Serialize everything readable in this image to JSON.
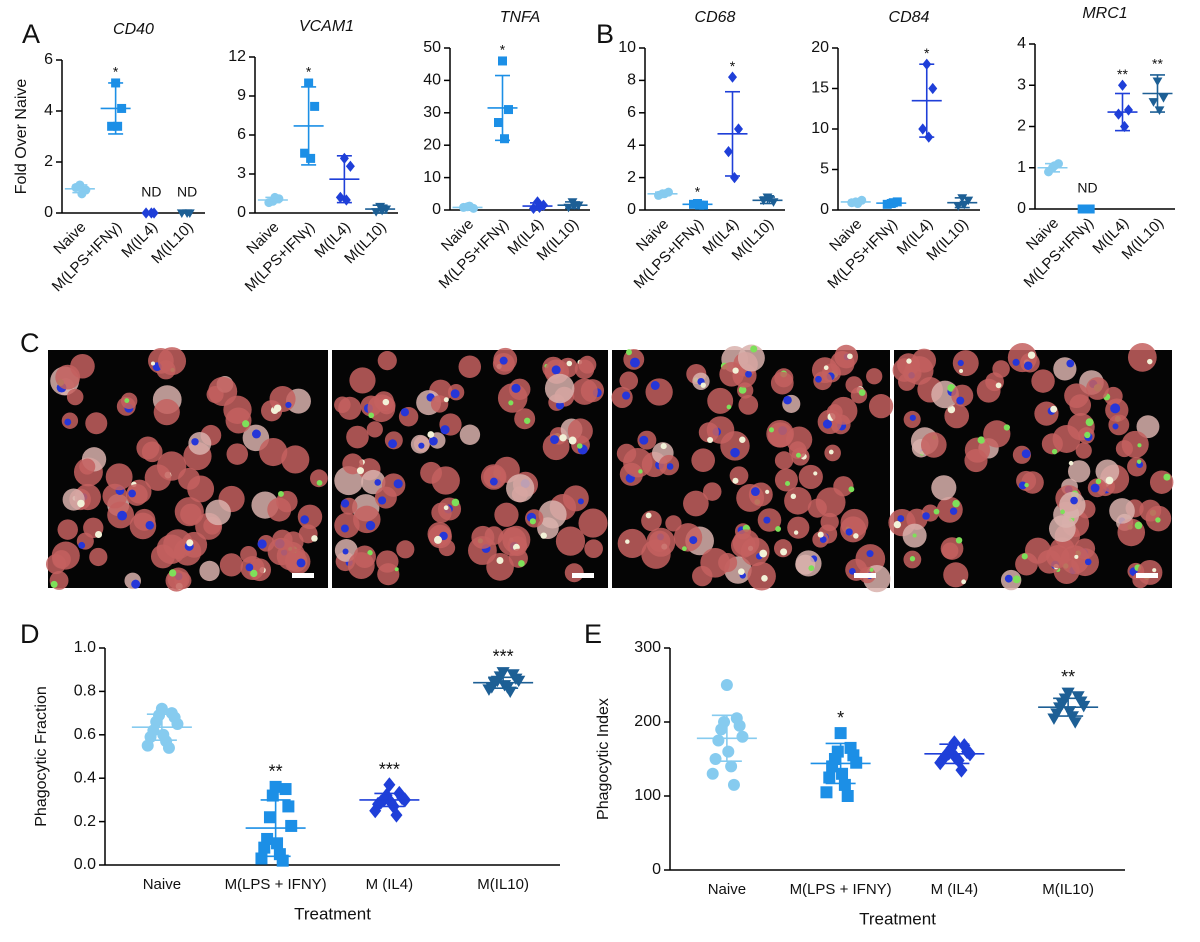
{
  "chart_data": [
    {
      "type": "dot",
      "panel": "A",
      "title": "CD40",
      "ylabel": "Fold Over Naive",
      "categories": [
        "Naive",
        "M(LPS+IFNγ)",
        "M(IL4)",
        "M(IL10)"
      ],
      "ylim": [
        0,
        6
      ],
      "yticks": [
        0,
        2,
        4,
        6
      ],
      "groups": [
        {
          "marker": "circle",
          "color": "#86cbef",
          "values": [
            1.1,
            0.9,
            1.0,
            0.75
          ],
          "mean": 0.95,
          "sd": 0.15
        },
        {
          "marker": "square",
          "color": "#1c8fe6",
          "values": [
            5.1,
            4.1,
            3.4,
            3.4
          ],
          "mean": 4.1,
          "sd": 1.0,
          "annotation": "*"
        },
        {
          "marker": "diamond",
          "color": "#1f3fd8",
          "values": [
            0,
            0,
            0
          ],
          "annotation": "ND"
        },
        {
          "marker": "triangle",
          "color": "#1d5f95",
          "values": [
            0,
            0,
            0
          ],
          "annotation": "ND"
        }
      ]
    },
    {
      "type": "dot",
      "title": "VCAM1",
      "categories": [
        "Naive",
        "M(LPS+IFNγ)",
        "M(IL4)",
        "M(IL10)"
      ],
      "ylim": [
        0,
        12
      ],
      "yticks": [
        0,
        3,
        6,
        9,
        12
      ],
      "groups": [
        {
          "marker": "circle",
          "color": "#86cbef",
          "values": [
            0.9,
            1.1,
            0.8,
            1.2
          ],
          "mean": 1.0,
          "sd": 0.2
        },
        {
          "marker": "square",
          "color": "#1c8fe6",
          "values": [
            10.0,
            8.2,
            4.6,
            4.2
          ],
          "mean": 6.7,
          "sd": 3.0,
          "annotation": "*"
        },
        {
          "marker": "diamond",
          "color": "#1f3fd8",
          "values": [
            4.2,
            3.6,
            1.2,
            1.0
          ],
          "mean": 2.6,
          "sd": 1.8
        },
        {
          "marker": "triangle",
          "color": "#1d5f95",
          "values": [
            0.5,
            0.3,
            0.1,
            0.2
          ],
          "mean": 0.3,
          "sd": 0.3
        }
      ]
    },
    {
      "type": "dot",
      "title": "TNFA",
      "categories": [
        "Naive",
        "M(LPS+IFNγ)",
        "M(IL4)",
        "M(IL10)"
      ],
      "ylim": [
        0,
        50
      ],
      "yticks": [
        0,
        10,
        20,
        30,
        40,
        50
      ],
      "groups": [
        {
          "marker": "circle",
          "color": "#86cbef",
          "values": [
            1.0,
            0.5,
            0.8,
            1.2
          ],
          "mean": 0.8,
          "sd": 0.4
        },
        {
          "marker": "square",
          "color": "#1c8fe6",
          "values": [
            46,
            31,
            27,
            22
          ],
          "mean": 31.5,
          "sd": 10,
          "annotation": "*"
        },
        {
          "marker": "diamond",
          "color": "#1f3fd8",
          "values": [
            2.5,
            1.5,
            0.5,
            0.8
          ],
          "mean": 1.2,
          "sd": 1.0
        },
        {
          "marker": "triangle",
          "color": "#1d5f95",
          "values": [
            2.5,
            1.5,
            0.8,
            1.5
          ],
          "mean": 1.5,
          "sd": 1.0
        }
      ]
    },
    {
      "type": "dot",
      "panel": "B",
      "title": "CD68",
      "categories": [
        "Naive",
        "M(LPS+IFNγ)",
        "M(IL4)",
        "M(IL10)"
      ],
      "ylim": [
        0,
        10
      ],
      "yticks": [
        0,
        2,
        4,
        6,
        8,
        10
      ],
      "groups": [
        {
          "marker": "circle",
          "color": "#86cbef",
          "values": [
            1.0,
            1.1,
            0.9,
            1.0
          ],
          "mean": 1.0,
          "sd": 0.1
        },
        {
          "marker": "square",
          "color": "#1c8fe6",
          "values": [
            0.4,
            0.3,
            0.35,
            0.3
          ],
          "mean": 0.35,
          "sd": 0.1,
          "annotation": "*"
        },
        {
          "marker": "diamond",
          "color": "#1f3fd8",
          "values": [
            8.2,
            5.0,
            3.6,
            2.0
          ],
          "mean": 4.7,
          "sd": 2.6,
          "annotation": "*"
        },
        {
          "marker": "triangle",
          "color": "#1d5f95",
          "values": [
            0.8,
            0.5,
            0.6,
            0.7
          ],
          "mean": 0.6,
          "sd": 0.2
        }
      ]
    },
    {
      "type": "dot",
      "title": "CD84",
      "categories": [
        "Naive",
        "M(LPS+IFNγ)",
        "M(IL4)",
        "M(IL10)"
      ],
      "ylim": [
        0,
        20
      ],
      "yticks": [
        0,
        5,
        10,
        15,
        20
      ],
      "groups": [
        {
          "marker": "circle",
          "color": "#86cbef",
          "values": [
            1.0,
            1.2,
            0.9,
            0.8
          ],
          "mean": 1.0,
          "sd": 0.2
        },
        {
          "marker": "square",
          "color": "#1c8fe6",
          "values": [
            0.8,
            1.0,
            0.7,
            0.9
          ],
          "mean": 0.85,
          "sd": 0.2
        },
        {
          "marker": "diamond",
          "color": "#1f3fd8",
          "values": [
            18,
            15,
            10,
            9
          ],
          "mean": 13.5,
          "sd": 4.5,
          "annotation": "*"
        },
        {
          "marker": "triangle",
          "color": "#1d5f95",
          "values": [
            1.5,
            1.2,
            0.5,
            0.7
          ],
          "mean": 0.9,
          "sd": 0.6
        }
      ]
    },
    {
      "type": "dot",
      "title": "MRC1",
      "categories": [
        "Naive",
        "M(LPS+IFNγ)",
        "M(IL4)",
        "M(IL10)"
      ],
      "ylim": [
        0,
        4
      ],
      "yticks": [
        0,
        1,
        2,
        3,
        4
      ],
      "groups": [
        {
          "marker": "circle",
          "color": "#86cbef",
          "values": [
            1.0,
            1.1,
            0.9,
            1.05
          ],
          "mean": 1.0,
          "sd": 0.1
        },
        {
          "marker": "square",
          "color": "#1c8fe6",
          "values": [
            0,
            0,
            0
          ],
          "annotation": "ND"
        },
        {
          "marker": "diamond",
          "color": "#1f3fd8",
          "values": [
            3.0,
            2.4,
            2.3,
            2.0
          ],
          "mean": 2.35,
          "sd": 0.45,
          "annotation": "**"
        },
        {
          "marker": "triangle",
          "color": "#1d5f95",
          "values": [
            3.1,
            2.7,
            2.6,
            2.4
          ],
          "mean": 2.8,
          "sd": 0.45,
          "annotation": "**"
        }
      ]
    },
    {
      "type": "dot",
      "panel": "D",
      "ylabel": "Phagocytic Fraction",
      "xlabel": "Treatment",
      "categories": [
        "Naive",
        "M(LPS + IFNY)",
        "M (IL4)",
        "M(IL10)"
      ],
      "ylim": [
        0,
        1
      ],
      "yticks": [
        {
          "value": 0,
          "label": "0.0"
        },
        0.2,
        0.4,
        0.6,
        0.8,
        {
          "value": 1,
          "label": "1.0"
        }
      ],
      "groups": [
        {
          "marker": "circle",
          "color": "#86cbef",
          "values": [
            0.72,
            0.7,
            0.69,
            0.68,
            0.66,
            0.65,
            0.62,
            0.6,
            0.59,
            0.57,
            0.55,
            0.54
          ],
          "mean": 0.635,
          "sd": 0.06
        },
        {
          "marker": "square",
          "color": "#1c8fe6",
          "values": [
            0.36,
            0.35,
            0.32,
            0.27,
            0.22,
            0.18,
            0.12,
            0.1,
            0.08,
            0.05,
            0.03,
            0.02
          ],
          "mean": 0.17,
          "sd": 0.13,
          "annotation": "**"
        },
        {
          "marker": "diamond",
          "color": "#1f3fd8",
          "values": [
            0.37,
            0.33,
            0.32,
            0.31,
            0.3,
            0.3,
            0.29,
            0.29,
            0.28,
            0.27,
            0.25,
            0.23
          ],
          "mean": 0.3,
          "sd": 0.03,
          "annotation": "***"
        },
        {
          "marker": "triangle",
          "color": "#1d5f95",
          "values": [
            0.89,
            0.88,
            0.87,
            0.86,
            0.85,
            0.85,
            0.84,
            0.83,
            0.82,
            0.82,
            0.81,
            0.8
          ],
          "mean": 0.84,
          "sd": 0.025,
          "annotation": "***"
        }
      ]
    },
    {
      "type": "dot",
      "panel": "E",
      "ylabel": "Phagocytic Index",
      "xlabel": "Treatment",
      "categories": [
        "Naive",
        "M(LPS + IFNY)",
        "M (IL4)",
        "M(IL10)"
      ],
      "ylim": [
        0,
        300
      ],
      "yticks": [
        0,
        100,
        200,
        300
      ],
      "groups": [
        {
          "marker": "circle",
          "color": "#86cbef",
          "values": [
            250,
            205,
            200,
            195,
            190,
            180,
            175,
            160,
            150,
            140,
            130,
            115
          ],
          "mean": 178,
          "sd": 31
        },
        {
          "marker": "square",
          "color": "#1c8fe6",
          "values": [
            185,
            165,
            160,
            155,
            150,
            145,
            140,
            130,
            125,
            115,
            105,
            100
          ],
          "mean": 144,
          "sd": 27,
          "annotation": "*"
        },
        {
          "marker": "diamond",
          "color": "#1f3fd8",
          "values": [
            172,
            168,
            165,
            160,
            158,
            157,
            155,
            152,
            150,
            148,
            145,
            135
          ],
          "mean": 157,
          "sd": 13
        },
        {
          "marker": "triangle",
          "color": "#1d5f95",
          "values": [
            240,
            235,
            232,
            228,
            225,
            222,
            220,
            215,
            212,
            208,
            205,
            200
          ],
          "mean": 220,
          "sd": 12,
          "annotation": "**"
        }
      ]
    }
  ],
  "image_panel": {
    "label": "C"
  }
}
